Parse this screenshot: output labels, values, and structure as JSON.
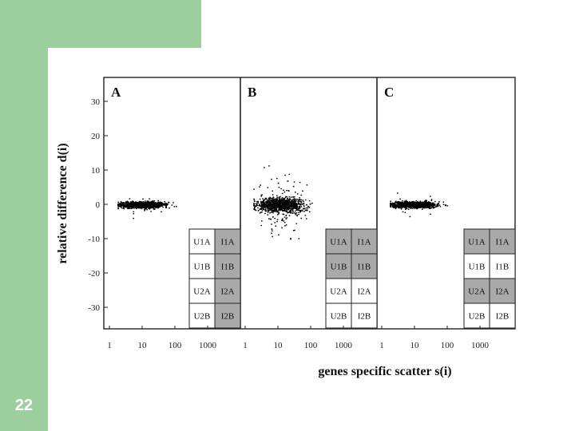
{
  "slide": {
    "number": "22"
  },
  "colors": {
    "accent": "#9dcf9e",
    "shaded": "#a9a9a9",
    "dots": "#000000"
  },
  "chart_data": {
    "type": "scatter",
    "xlabel": "genes specific scatter s(i)",
    "ylabel": "relative difference d(i)",
    "xscale": "log",
    "xlim": [
      1,
      3000
    ],
    "ylim": [
      -35,
      33
    ],
    "y_ticks": [
      "30",
      "20",
      "10",
      "0",
      "-10",
      "-20",
      "-30"
    ],
    "x_ticks": [
      "1",
      "10",
      "100",
      "1000"
    ],
    "panels": [
      {
        "letter": "A",
        "spread": "narrow",
        "design": [
          {
            "left": "U1A",
            "right": "I1A",
            "left_shaded": false,
            "right_shaded": true
          },
          {
            "left": "U1B",
            "right": "I1B",
            "left_shaded": false,
            "right_shaded": true
          },
          {
            "left": "U2A",
            "right": "I2A",
            "left_shaded": false,
            "right_shaded": true
          },
          {
            "left": "U2B",
            "right": "I2B",
            "left_shaded": false,
            "right_shaded": true
          }
        ]
      },
      {
        "letter": "B",
        "spread": "wide",
        "design": [
          {
            "left": "U1A",
            "right": "I1A",
            "left_shaded": true,
            "right_shaded": true
          },
          {
            "left": "U1B",
            "right": "I1B",
            "left_shaded": true,
            "right_shaded": true
          },
          {
            "left": "U2A",
            "right": "I2A",
            "left_shaded": false,
            "right_shaded": false
          },
          {
            "left": "U2B",
            "right": "I2B",
            "left_shaded": false,
            "right_shaded": false
          }
        ]
      },
      {
        "letter": "C",
        "spread": "narrow",
        "design": [
          {
            "left": "U1A",
            "right": "I1A",
            "left_shaded": true,
            "right_shaded": true
          },
          {
            "left": "U1B",
            "right": "I1B",
            "left_shaded": false,
            "right_shaded": false
          },
          {
            "left": "U2A",
            "right": "I2A",
            "left_shaded": true,
            "right_shaded": true
          },
          {
            "left": "U2B",
            "right": "I2B",
            "left_shaded": false,
            "right_shaded": false
          }
        ]
      }
    ]
  }
}
